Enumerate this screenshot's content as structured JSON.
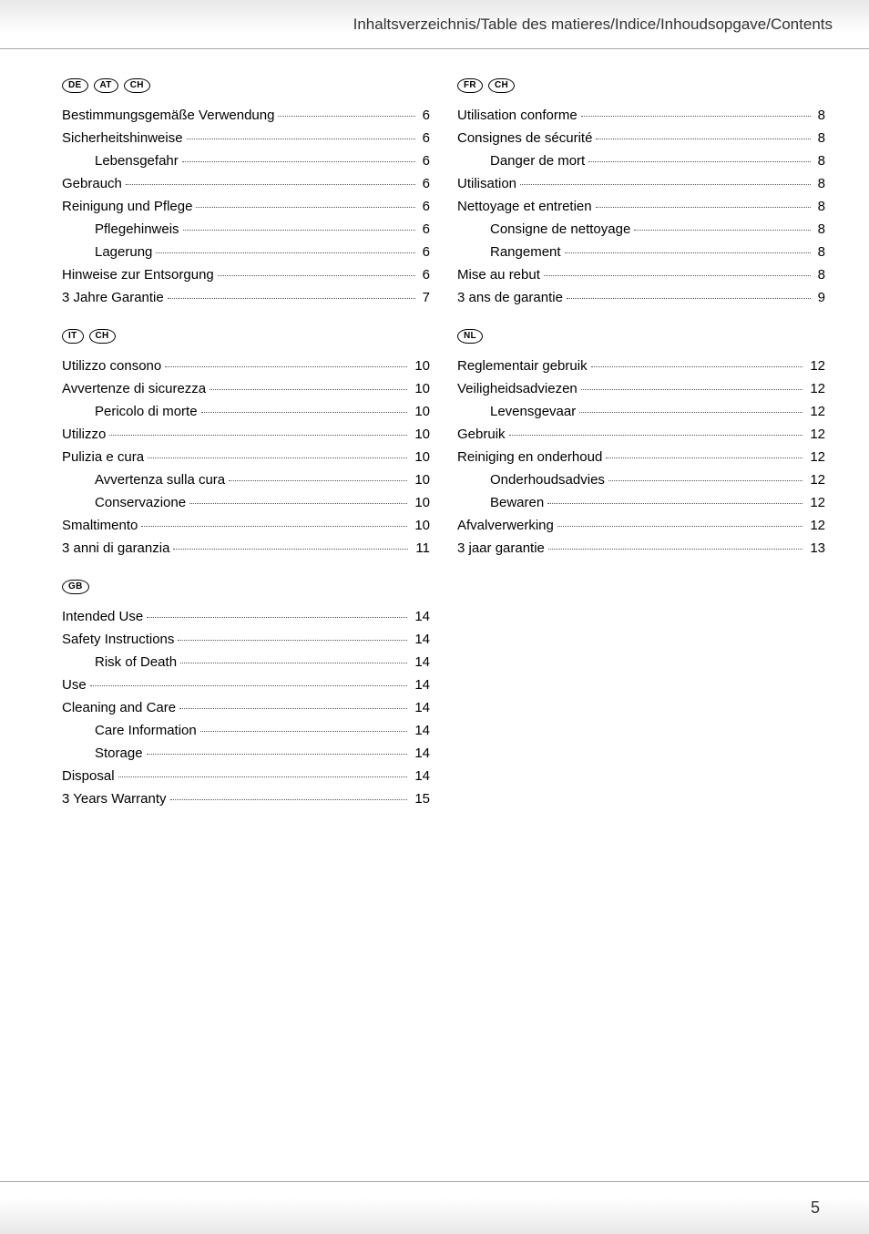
{
  "header": {
    "title": "Inhaltsverzeichnis/Table des matieres/Indice/Inhoudsopgave/Contents"
  },
  "page_number": "5",
  "columns": [
    {
      "sections": [
        {
          "badges": [
            "DE",
            "AT",
            "CH"
          ],
          "entries": [
            {
              "label": "Bestimmungsgemäße Verwendung",
              "page": "6",
              "indent": 0
            },
            {
              "label": "Sicherheitshinweise",
              "page": "6",
              "indent": 0
            },
            {
              "label": "Lebensgefahr",
              "page": "6",
              "indent": 1
            },
            {
              "label": "Gebrauch",
              "page": "6",
              "indent": 0
            },
            {
              "label": "Reinigung und Pflege",
              "page": "6",
              "indent": 0
            },
            {
              "label": "Pflegehinweis",
              "page": "6",
              "indent": 1
            },
            {
              "label": "Lagerung",
              "page": "6",
              "indent": 1
            },
            {
              "label": "Hinweise zur Entsorgung",
              "page": "6",
              "indent": 0
            },
            {
              "label": "3 Jahre Garantie",
              "page": "7",
              "indent": 0
            }
          ]
        },
        {
          "badges": [
            "IT",
            "CH"
          ],
          "entries": [
            {
              "label": "Utilizzo consono",
              "page": "10",
              "indent": 0
            },
            {
              "label": "Avvertenze di sicurezza",
              "page": "10",
              "indent": 0
            },
            {
              "label": "Pericolo di morte",
              "page": "10",
              "indent": 1
            },
            {
              "label": "Utilizzo",
              "page": "10",
              "indent": 0
            },
            {
              "label": "Pulizia e cura",
              "page": "10",
              "indent": 0
            },
            {
              "label": "Avvertenza sulla cura",
              "page": "10",
              "indent": 1
            },
            {
              "label": "Conservazione",
              "page": "10",
              "indent": 1
            },
            {
              "label": "Smaltimento",
              "page": "10",
              "indent": 0
            },
            {
              "label": "3 anni di garanzia",
              "page": "11",
              "indent": 0
            }
          ]
        },
        {
          "badges": [
            "GB"
          ],
          "entries": [
            {
              "label": "Intended Use",
              "page": "14",
              "indent": 0
            },
            {
              "label": "Safety Instructions",
              "page": "14",
              "indent": 0
            },
            {
              "label": "Risk of Death",
              "page": "14",
              "indent": 1
            },
            {
              "label": "Use",
              "page": "14",
              "indent": 0
            },
            {
              "label": "Cleaning and Care",
              "page": "14",
              "indent": 0
            },
            {
              "label": "Care Information",
              "page": "14",
              "indent": 1
            },
            {
              "label": "Storage",
              "page": "14",
              "indent": 1
            },
            {
              "label": "Disposal",
              "page": "14",
              "indent": 0
            },
            {
              "label": "3 Years Warranty",
              "page": "15",
              "indent": 0
            }
          ]
        }
      ]
    },
    {
      "sections": [
        {
          "badges": [
            "FR",
            "CH"
          ],
          "entries": [
            {
              "label": "Utilisation conforme",
              "page": "8",
              "indent": 0
            },
            {
              "label": "Consignes de sécurité",
              "page": "8",
              "indent": 0
            },
            {
              "label": "Danger de mort",
              "page": "8",
              "indent": 1
            },
            {
              "label": "Utilisation",
              "page": "8",
              "indent": 0
            },
            {
              "label": "Nettoyage et entretien",
              "page": "8",
              "indent": 0
            },
            {
              "label": "Consigne de nettoyage",
              "page": "8",
              "indent": 1
            },
            {
              "label": "Rangement",
              "page": "8",
              "indent": 1
            },
            {
              "label": "Mise au rebut",
              "page": "8",
              "indent": 0
            },
            {
              "label": "3 ans de garantie",
              "page": "9",
              "indent": 0
            }
          ]
        },
        {
          "badges": [
            "NL"
          ],
          "entries": [
            {
              "label": "Reglementair gebruik",
              "page": "12",
              "indent": 0
            },
            {
              "label": "Veiligheidsadviezen",
              "page": "12",
              "indent": 0
            },
            {
              "label": "Levensgevaar",
              "page": "12",
              "indent": 1
            },
            {
              "label": "Gebruik",
              "page": "12",
              "indent": 0
            },
            {
              "label": "Reiniging en onderhoud",
              "page": "12",
              "indent": 0
            },
            {
              "label": "Onderhoudsadvies",
              "page": "12",
              "indent": 1
            },
            {
              "label": "Bewaren",
              "page": "12",
              "indent": 1
            },
            {
              "label": "Afvalverwerking",
              "page": "12",
              "indent": 0
            },
            {
              "label": "3 jaar garantie",
              "page": "13",
              "indent": 0
            }
          ]
        }
      ]
    }
  ]
}
